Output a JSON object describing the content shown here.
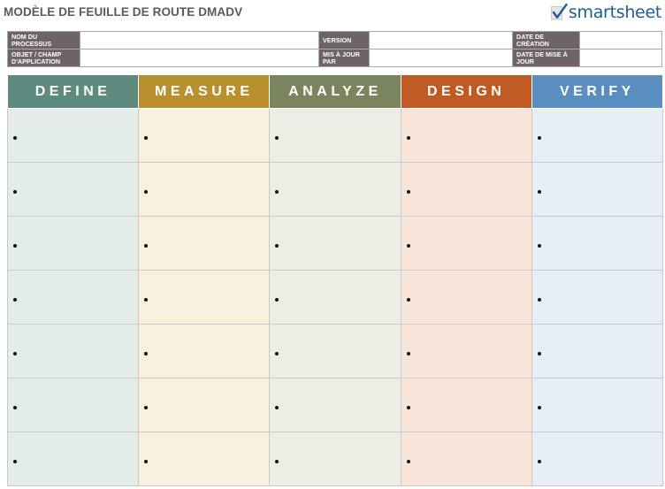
{
  "title": "MODÈLE DE FEUILLE DE ROUTE DMADV",
  "logo": {
    "text": "smartsheet",
    "icon": "smartsheet-check-icon",
    "color": "#1f5c92"
  },
  "info": {
    "row1": [
      {
        "label": "NOM DU PROCESSUS",
        "value": ""
      },
      {
        "label": "VERSION",
        "value": ""
      },
      {
        "label": "DATE DE CRÉATION",
        "value": ""
      }
    ],
    "row2": [
      {
        "label": "OBJET / CHAMP D'APPLICATION",
        "value": ""
      },
      {
        "label": "MIS À JOUR PAR",
        "value": ""
      },
      {
        "label": "DATE DE MISE À JOUR",
        "value": ""
      }
    ]
  },
  "columns": [
    {
      "label": "DEFINE",
      "header_color": "#5f8a80",
      "cell_color": "#e3ece8"
    },
    {
      "label": "MEASURE",
      "header_color": "#b8902f",
      "cell_color": "#f8efdd"
    },
    {
      "label": "ANALYZE",
      "header_color": "#7a8560",
      "cell_color": "#eceee6"
    },
    {
      "label": "DESIGN",
      "header_color": "#c05a24",
      "cell_color": "#f9e4da"
    },
    {
      "label": "VERIFY",
      "header_color": "#5a8ebe",
      "cell_color": "#e8eef6"
    }
  ],
  "row_count": 7
}
